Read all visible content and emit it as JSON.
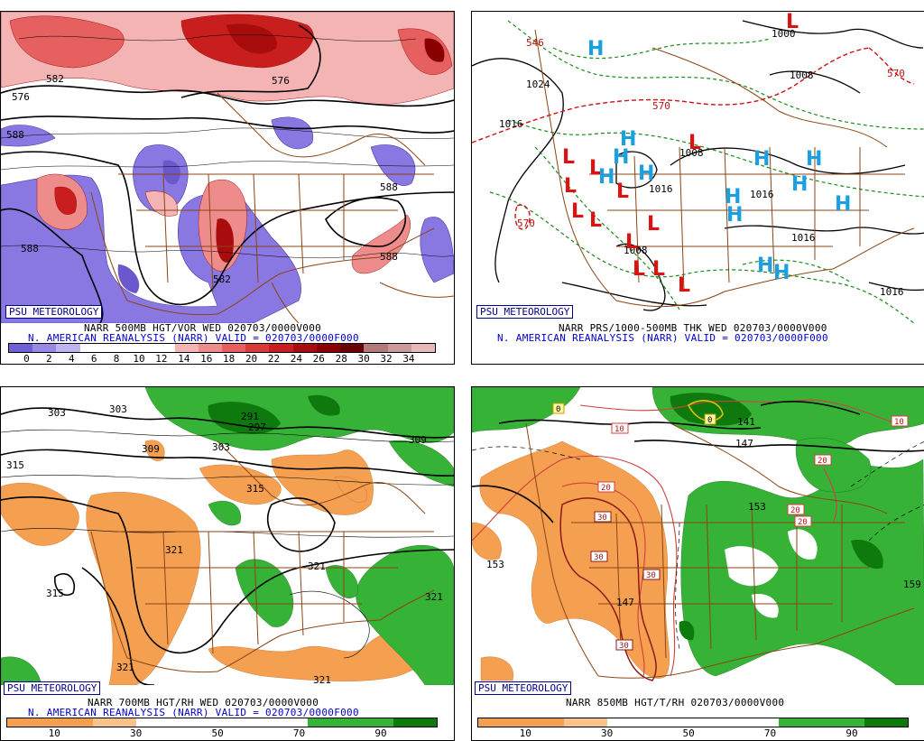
{
  "panels": [
    {
      "id": "p1",
      "logo": "PSU METEOROLOGY",
      "title": "NARR 500MB HGT/VOR WED 020703/0000V000",
      "subtitle": "N. AMERICAN REANALYSIS (NARR) VALID = 020703/0000F000",
      "scale_ticks": [
        "0",
        "2",
        "4",
        "6",
        "8",
        "10",
        "12",
        "14",
        "16",
        "18",
        "20",
        "22",
        "24",
        "26",
        "28",
        "30",
        "32",
        "34"
      ],
      "scale_colors": [
        "#7060d8",
        "#9a88e6",
        "#c0b4f0",
        "#ffffff",
        "#ffffff",
        "#ffffff",
        "#ffffff",
        "#f4b4b4",
        "#ee8c8c",
        "#e66060",
        "#d83a3a",
        "#c81e1e",
        "#a80c0c",
        "#880000",
        "#6a0000",
        "#b47a7a",
        "#cc9a9a",
        "#e6baba"
      ],
      "contour_labels": [
        "576",
        "588",
        "582",
        "588",
        "576",
        "588",
        "588",
        "582"
      ]
    },
    {
      "id": "p2",
      "logo": "PSU METEOROLOGY",
      "title": "NARR PRS/1000-500MB THK WED 020703/0000V000",
      "subtitle": "N. AMERICAN REANALYSIS (NARR) VALID = 020703/0000F000",
      "contour_labels": [
        "1000",
        "1008",
        "1024",
        "1016",
        "1008",
        "1016",
        "1016",
        "1016",
        "1008",
        "1016"
      ],
      "thickness_labels": [
        "546",
        "570",
        "570",
        "570"
      ],
      "pressure_centers": [
        "L",
        "L",
        "L",
        "L",
        "L",
        "L",
        "L",
        "L",
        "L",
        "L",
        "L",
        "L",
        "L",
        "H",
        "H",
        "H",
        "H",
        "H",
        "H",
        "H",
        "H",
        "H",
        "H",
        "H",
        "H",
        "H"
      ]
    },
    {
      "id": "p3",
      "logo": "PSU METEOROLOGY",
      "title": "NARR 700MB HGT/RH WED 020703/0000V000",
      "subtitle": "N. AMERICAN REANALYSIS (NARR) VALID = 020703/0000F000",
      "scale_ticks": [
        "10",
        "30",
        "50",
        "70",
        "90"
      ],
      "scale_colors": [
        "#f4a050",
        "#f4a050",
        "#f8c48c",
        "#ffffff",
        "#ffffff",
        "#ffffff",
        "#ffffff",
        "#36b236",
        "#36b236",
        "#0e7a0e"
      ],
      "contour_labels": [
        "303",
        "303",
        "297",
        "291",
        "303",
        "309",
        "309",
        "315",
        "315",
        "321",
        "321",
        "315",
        "321",
        "321",
        "321"
      ]
    },
    {
      "id": "p4",
      "logo": "PSU METEOROLOGY",
      "title": "NARR 850MB HGT/T/RH 020703/0000V000",
      "scale_ticks": [
        "10",
        "30",
        "50",
        "70",
        "90"
      ],
      "scale_colors": [
        "#f4a050",
        "#f4a050",
        "#f8c48c",
        "#ffffff",
        "#ffffff",
        "#ffffff",
        "#ffffff",
        "#36b236",
        "#36b236",
        "#0e7a0e"
      ],
      "contour_labels": [
        "147",
        "141",
        "153",
        "153",
        "147",
        "159"
      ],
      "temp_boxes": [
        "0",
        "0",
        "10",
        "10",
        "20",
        "20",
        "20",
        "20",
        "30",
        "30",
        "30",
        "30"
      ]
    }
  ]
}
